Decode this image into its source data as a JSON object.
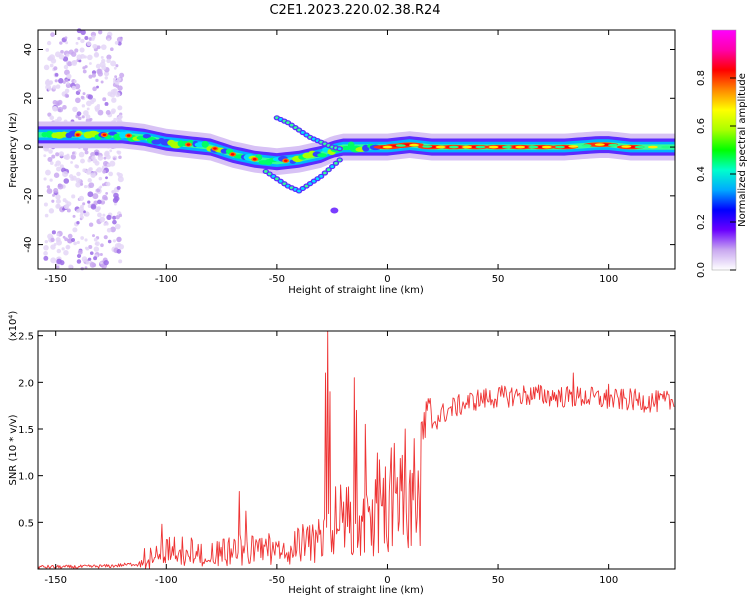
{
  "title": "C2E1.2023.220.02.38.R24",
  "chart_data": [
    {
      "type": "heatmap",
      "xlabel": "Height of straight line (km)",
      "ylabel": "Frequency (Hz)",
      "xlim": [
        -158,
        130
      ],
      "ylim": [
        -50,
        48
      ],
      "xticks": [
        -150,
        -100,
        -50,
        0,
        50,
        100
      ],
      "yticks": [
        -40,
        -20,
        0,
        20,
        40
      ],
      "ridge": {
        "x": [
          -155,
          -140,
          -120,
          -110,
          -100,
          -90,
          -80,
          -70,
          -60,
          -50,
          -40,
          -30,
          -25,
          -20,
          -10,
          0,
          10,
          20,
          50,
          80,
          95,
          100,
          110,
          130
        ],
        "y": [
          5,
          5,
          5,
          4,
          2,
          1,
          0,
          -3,
          -5,
          -6,
          -5,
          -3,
          -1,
          0,
          0,
          0,
          1,
          0,
          0,
          0,
          1,
          1,
          0,
          0
        ]
      },
      "branch_up": {
        "x": [
          -50,
          -45,
          -40,
          -35,
          -30,
          -25,
          -20
        ],
        "y": [
          12,
          10,
          7,
          4,
          2,
          0,
          -1
        ]
      },
      "branch_down": {
        "x": [
          -55,
          -50,
          -45,
          -40,
          -35,
          -30,
          -25,
          -20
        ],
        "y": [
          -10,
          -13,
          -16,
          -18,
          -15,
          -12,
          -8,
          -4
        ]
      },
      "isolated_blob": {
        "x": -24,
        "y": -26
      },
      "scatter_region_x": [
        -155,
        -120
      ],
      "colorbar": {
        "label": "Normalized spectral amplitude",
        "range": [
          0,
          1
        ],
        "ticks": [
          "0.0",
          "0.2",
          "0.4",
          "0.6",
          "0.8"
        ],
        "colors": [
          "#ffffff",
          "#c9a8f0",
          "#6a00ff",
          "#0000ff",
          "#00aaff",
          "#00ffcc",
          "#00ff00",
          "#aaff00",
          "#ffff00",
          "#ff8800",
          "#ff0000",
          "#ff00aa",
          "#ff00ff"
        ]
      }
    },
    {
      "type": "line",
      "xlabel": "Height of straight line (km)",
      "ylabel": "SNR (10 * v/v)",
      "exponent_label": "(x10⁴)",
      "xlim": [
        -158,
        130
      ],
      "ylim": [
        0,
        2.55
      ],
      "xticks": [
        -150,
        -100,
        -50,
        0,
        50,
        100
      ],
      "yticks": [
        0.5,
        1.0,
        1.5,
        2.0,
        2.5
      ],
      "ytick_labels": [
        "0.5",
        "1.0",
        "1.5",
        "2.0",
        "2.5"
      ],
      "color": "#ee3333",
      "envelope": {
        "x": [
          -158,
          -140,
          -125,
          -115,
          -108,
          -100,
          -90,
          -80,
          -70,
          -60,
          -50,
          -40,
          -30,
          -25,
          -20,
          -15,
          -10,
          -5,
          0,
          5,
          10,
          15,
          20,
          25,
          30,
          40,
          50,
          60,
          70,
          80,
          90,
          100,
          110,
          120,
          130
        ],
        "y": [
          0.02,
          0.02,
          0.03,
          0.05,
          0.1,
          0.2,
          0.2,
          0.15,
          0.2,
          0.25,
          0.3,
          0.3,
          0.45,
          0.5,
          0.55,
          0.45,
          0.8,
          0.9,
          0.95,
          1.05,
          1.2,
          1.4,
          1.55,
          1.65,
          1.72,
          1.8,
          1.83,
          1.85,
          1.85,
          1.83,
          1.83,
          1.8,
          1.8,
          1.78,
          1.78
        ]
      },
      "spikes": [
        {
          "x": -102,
          "y": 0.48
        },
        {
          "x": -67,
          "y": 0.83
        },
        {
          "x": -64,
          "y": 0.62
        },
        {
          "x": -28,
          "y": 2.1
        },
        {
          "x": -27,
          "y": 2.55
        },
        {
          "x": -26,
          "y": 1.9
        },
        {
          "x": -15,
          "y": 2.05
        },
        {
          "x": -14,
          "y": 1.7
        },
        {
          "x": -10,
          "y": 1.55
        },
        {
          "x": 8,
          "y": 1.5
        },
        {
          "x": 84,
          "y": 2.1
        },
        {
          "x": 100,
          "y": 1.98
        }
      ]
    }
  ]
}
